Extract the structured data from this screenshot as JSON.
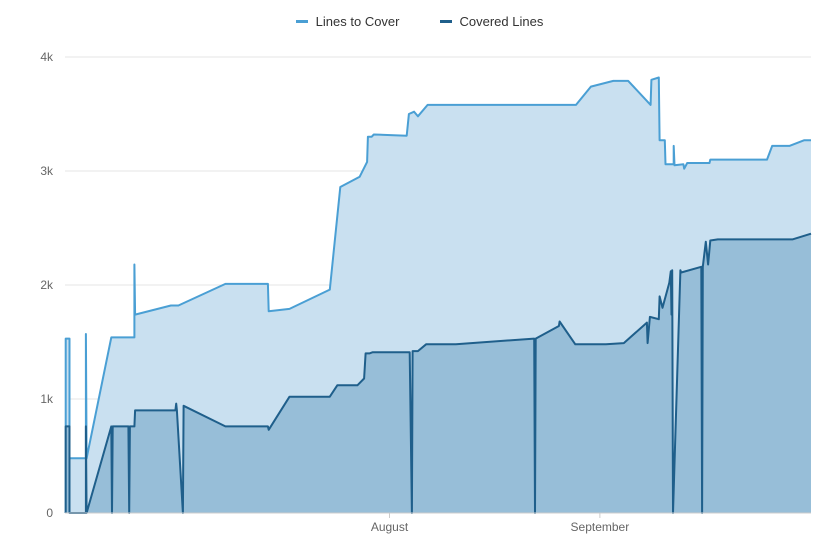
{
  "colors": {
    "lines_to_cover_stroke": "#4a9fd4",
    "lines_to_cover_fill": "#c9e0f0",
    "covered_lines_stroke": "#1f5f8b",
    "covered_lines_fill": "#95bcd6",
    "grid": "#e6e6e6",
    "axis": "#cccccc",
    "tick_text": "#666666"
  },
  "legend": [
    {
      "name": "Lines to Cover"
    },
    {
      "name": "Covered Lines"
    }
  ],
  "chart_data": {
    "type": "area",
    "xlabel": "",
    "ylabel": "",
    "x_range": [
      0,
      100
    ],
    "ylim": [
      0,
      4000
    ],
    "y_ticks": [
      {
        "value": 0,
        "label": "0"
      },
      {
        "value": 1000,
        "label": "1k"
      },
      {
        "value": 2000,
        "label": "2k"
      },
      {
        "value": 3000,
        "label": "3k"
      },
      {
        "value": 4000,
        "label": "4k"
      }
    ],
    "x_ticks": [
      {
        "value": 43.5,
        "label": "August"
      },
      {
        "value": 71.7,
        "label": "September"
      }
    ],
    "grid": true,
    "legend_position": "top-center",
    "series": [
      {
        "name": "Lines to Cover",
        "points": [
          [
            0.1,
            0
          ],
          [
            0.1,
            1530
          ],
          [
            0.6,
            1530
          ],
          [
            0.6,
            480
          ],
          [
            2.8,
            480
          ],
          [
            2.8,
            1570
          ],
          [
            2.9,
            480
          ],
          [
            6.2,
            1540
          ],
          [
            9.3,
            1540
          ],
          [
            9.3,
            2180
          ],
          [
            9.4,
            1740
          ],
          [
            14.2,
            1820
          ],
          [
            15.2,
            1820
          ],
          [
            21.5,
            2010
          ],
          [
            27.2,
            2010
          ],
          [
            27.3,
            1770
          ],
          [
            30.1,
            1790
          ],
          [
            35.5,
            1960
          ],
          [
            36.9,
            2860
          ],
          [
            39.5,
            2950
          ],
          [
            40.5,
            3080
          ],
          [
            40.6,
            3300
          ],
          [
            41.1,
            3300
          ],
          [
            41.4,
            3320
          ],
          [
            45.8,
            3310
          ],
          [
            46.1,
            3500
          ],
          [
            46.8,
            3520
          ],
          [
            47.3,
            3480
          ],
          [
            48.6,
            3580
          ],
          [
            68.5,
            3580
          ],
          [
            70.5,
            3740
          ],
          [
            73.5,
            3790
          ],
          [
            75.5,
            3790
          ],
          [
            78.5,
            3580
          ],
          [
            78.6,
            3800
          ],
          [
            79.6,
            3820
          ],
          [
            79.7,
            3270
          ],
          [
            80.4,
            3270
          ],
          [
            80.5,
            3060
          ],
          [
            81.6,
            3060
          ],
          [
            81.6,
            3220
          ],
          [
            81.7,
            3050
          ],
          [
            82.9,
            3060
          ],
          [
            83.0,
            3020
          ],
          [
            83.4,
            3070
          ],
          [
            86.4,
            3070
          ],
          [
            86.5,
            3100
          ],
          [
            94.1,
            3100
          ],
          [
            94.8,
            3220
          ],
          [
            97.1,
            3220
          ],
          [
            99.1,
            3270
          ],
          [
            100,
            3270
          ]
        ]
      },
      {
        "name": "Covered Lines",
        "points": [
          [
            0.1,
            0
          ],
          [
            0.1,
            760
          ],
          [
            0.6,
            760
          ],
          [
            0.6,
            0
          ],
          [
            2.8,
            0
          ],
          [
            2.8,
            760
          ],
          [
            2.9,
            0
          ],
          [
            6.2,
            760
          ],
          [
            6.3,
            0
          ],
          [
            6.4,
            760
          ],
          [
            8.5,
            760
          ],
          [
            8.6,
            0
          ],
          [
            8.7,
            760
          ],
          [
            9.3,
            760
          ],
          [
            9.4,
            900
          ],
          [
            14.8,
            900
          ],
          [
            14.9,
            960
          ],
          [
            15.0,
            900
          ],
          [
            15.8,
            0
          ],
          [
            15.9,
            940
          ],
          [
            21.5,
            760
          ],
          [
            27.2,
            760
          ],
          [
            27.3,
            730
          ],
          [
            30.1,
            1020
          ],
          [
            35.5,
            1020
          ],
          [
            36.5,
            1120
          ],
          [
            39.2,
            1120
          ],
          [
            40.1,
            1180
          ],
          [
            40.3,
            1400
          ],
          [
            40.8,
            1400
          ],
          [
            41.2,
            1410
          ],
          [
            46.2,
            1410
          ],
          [
            46.5,
            0
          ],
          [
            46.6,
            1420
          ],
          [
            47.3,
            1420
          ],
          [
            48.4,
            1480
          ],
          [
            52.4,
            1480
          ],
          [
            62.9,
            1530
          ],
          [
            63.0,
            0
          ],
          [
            63.1,
            1530
          ],
          [
            66.2,
            1640
          ],
          [
            66.3,
            1680
          ],
          [
            68.4,
            1480
          ],
          [
            72.5,
            1480
          ],
          [
            74.9,
            1490
          ],
          [
            78.0,
            1670
          ],
          [
            78.1,
            1490
          ],
          [
            78.4,
            1720
          ],
          [
            79.6,
            1700
          ],
          [
            79.7,
            1900
          ],
          [
            80.1,
            1800
          ],
          [
            81.0,
            2020
          ],
          [
            81.2,
            2120
          ],
          [
            81.3,
            1740
          ],
          [
            81.4,
            2130
          ],
          [
            81.5,
            0
          ],
          [
            82.5,
            2130
          ],
          [
            82.6,
            2110
          ],
          [
            85.3,
            2160
          ],
          [
            85.4,
            0
          ],
          [
            85.5,
            2160
          ],
          [
            85.9,
            2380
          ],
          [
            86.2,
            2180
          ],
          [
            86.5,
            2390
          ],
          [
            87.5,
            2400
          ],
          [
            97.5,
            2400
          ],
          [
            100,
            2450
          ]
        ]
      }
    ]
  }
}
